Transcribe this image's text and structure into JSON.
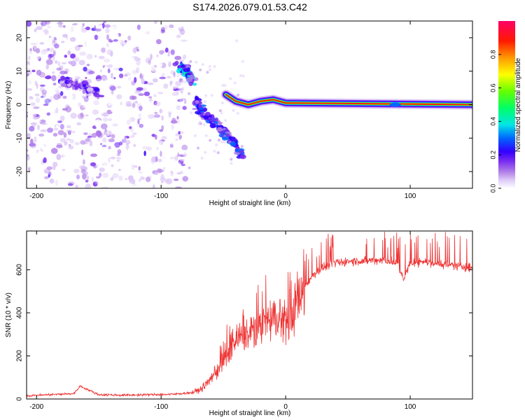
{
  "title": "S174.2026.079.01.53.C42",
  "chart_data": [
    {
      "type": "heatmap",
      "xlabel": "Height of straight line (km)",
      "ylabel": "Frequency (Hz)",
      "xlim": [
        -208,
        150
      ],
      "ylim": [
        -25,
        25
      ],
      "xticks": [
        -200,
        -100,
        0,
        100
      ],
      "yticks": [
        -20,
        -10,
        0,
        10,
        20
      ],
      "colorbar": {
        "label": "Normalized spectral amplitude",
        "range": [
          0,
          1
        ],
        "ticks": [
          0.0,
          0.2,
          0.4,
          0.6,
          0.8
        ],
        "colormap": [
          "#ffffff",
          "#ddc8f7",
          "#b07de8",
          "#7a2ff0",
          "#3300ff",
          "#0066ff",
          "#00e5e5",
          "#00ff66",
          "#66ff00",
          "#ffff00",
          "#ff9900",
          "#ff1a00",
          "#ff0066"
        ]
      },
      "features": [
        {
          "name": "noise-region",
          "x_range": [
            -208,
            -90
          ],
          "f_range": [
            -25,
            25
          ],
          "amplitude": 0.15
        },
        {
          "name": "upper-branch",
          "points": [
            [
              -85,
              11
            ],
            [
              -80,
              10.5
            ],
            [
              -75,
              7
            ]
          ],
          "amplitude": 0.5
        },
        {
          "name": "lower-branch",
          "points": [
            [
              -72,
              1
            ],
            [
              -65,
              -3
            ],
            [
              -55,
              -6
            ],
            [
              -45,
              -10
            ],
            [
              -35,
              -15
            ]
          ],
          "amplitude": 0.4
        },
        {
          "name": "cluster-left",
          "points": [
            [
              -180,
              7
            ],
            [
              -165,
              6
            ],
            [
              -150,
              3
            ]
          ],
          "amplitude": 0.3
        },
        {
          "name": "carrier-segment",
          "points": [
            [
              -48,
              3
            ],
            [
              -40,
              1
            ],
            [
              -30,
              0
            ],
            [
              -20,
              1
            ],
            [
              -10,
              1.5
            ],
            [
              0,
              0.5
            ],
            [
              150,
              0
            ]
          ],
          "amplitude": 0.95
        }
      ]
    },
    {
      "type": "line",
      "xlabel": "Height of straight line (km)",
      "ylabel": "SNR (10 * v/v)",
      "xlim": [
        -208,
        150
      ],
      "ylim": [
        0,
        780
      ],
      "xticks": [
        -200,
        -100,
        0,
        100
      ],
      "yticks": [
        0,
        200,
        400,
        600
      ],
      "series": [
        {
          "name": "SNR",
          "color": "#ee3333",
          "x": [
            -208,
            -190,
            -170,
            -165,
            -150,
            -130,
            -110,
            -90,
            -75,
            -68,
            -62,
            -55,
            -50,
            -45,
            -40,
            -35,
            -30,
            -25,
            -20,
            -15,
            -10,
            -5,
            0,
            5,
            10,
            15,
            20,
            25,
            30,
            40,
            50,
            60,
            70,
            80,
            90,
            95,
            100,
            110,
            120,
            130,
            140,
            150
          ],
          "values": [
            15,
            20,
            25,
            60,
            20,
            18,
            20,
            22,
            30,
            45,
            80,
            130,
            190,
            230,
            270,
            280,
            300,
            320,
            340,
            360,
            370,
            380,
            360,
            380,
            440,
            520,
            560,
            590,
            610,
            630,
            640,
            640,
            645,
            645,
            625,
            560,
            630,
            640,
            630,
            625,
            615,
            610
          ]
        }
      ]
    }
  ]
}
